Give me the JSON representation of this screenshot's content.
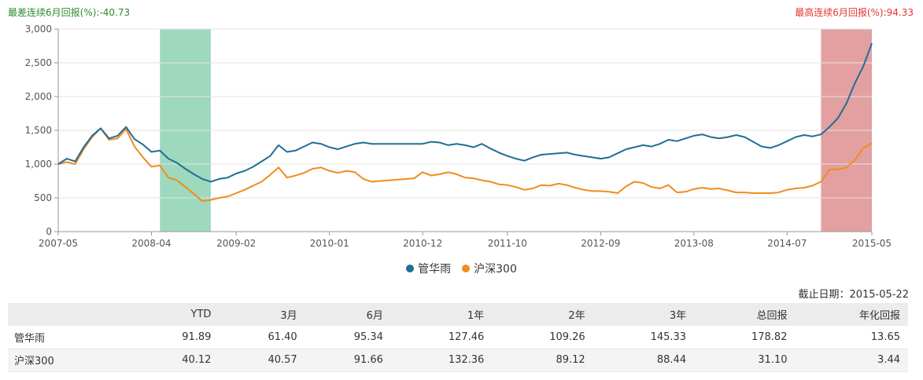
{
  "annotations": {
    "worst": "最差连续6月回报(%):-40.73",
    "best": "最高连续6月回报(%):94.33"
  },
  "colors": {
    "fund": "#1f6e96",
    "index": "#f28b1d",
    "worst_band": "#9ed9bd",
    "best_band": "#e3a0a0"
  },
  "chart_data": {
    "type": "line",
    "x_ticks": [
      "2007-05",
      "2008-04",
      "2009-02",
      "2010-01",
      "2010-12",
      "2011-10",
      "2012-09",
      "2013-08",
      "2014-07",
      "2015-05"
    ],
    "y_ticks": [
      "0",
      "500",
      "1,000",
      "1,500",
      "2,000",
      "2,500",
      "3,000"
    ],
    "ylim": [
      0,
      3000
    ],
    "highlight_bands": [
      {
        "start": "2008-05",
        "end": "2008-11",
        "label": "最差连续6月回报"
      },
      {
        "start": "2014-11",
        "end": "2015-05",
        "label": "最高连续6月回报"
      }
    ],
    "series": [
      {
        "name": "管华雨",
        "points": [
          [
            "2007-05",
            1000
          ],
          [
            "2007-06",
            1080
          ],
          [
            "2007-07",
            1040
          ],
          [
            "2007-08",
            1250
          ],
          [
            "2007-09",
            1420
          ],
          [
            "2007-10",
            1530
          ],
          [
            "2007-11",
            1380
          ],
          [
            "2007-12",
            1420
          ],
          [
            "2008-01",
            1550
          ],
          [
            "2008-02",
            1370
          ],
          [
            "2008-03",
            1290
          ],
          [
            "2008-04",
            1180
          ],
          [
            "2008-05",
            1200
          ],
          [
            "2008-06",
            1080
          ],
          [
            "2008-07",
            1020
          ],
          [
            "2008-08",
            930
          ],
          [
            "2008-09",
            850
          ],
          [
            "2008-10",
            780
          ],
          [
            "2008-11",
            740
          ],
          [
            "2008-12",
            780
          ],
          [
            "2009-01",
            800
          ],
          [
            "2009-02",
            860
          ],
          [
            "2009-03",
            900
          ],
          [
            "2009-04",
            960
          ],
          [
            "2009-05",
            1040
          ],
          [
            "2009-06",
            1120
          ],
          [
            "2009-07",
            1280
          ],
          [
            "2009-08",
            1180
          ],
          [
            "2009-09",
            1200
          ],
          [
            "2009-10",
            1260
          ],
          [
            "2009-11",
            1320
          ],
          [
            "2009-12",
            1300
          ],
          [
            "2010-01",
            1250
          ],
          [
            "2010-02",
            1220
          ],
          [
            "2010-03",
            1260
          ],
          [
            "2010-04",
            1300
          ],
          [
            "2010-05",
            1320
          ],
          [
            "2010-06",
            1300
          ],
          [
            "2010-12",
            1300
          ],
          [
            "2011-01",
            1330
          ],
          [
            "2011-02",
            1320
          ],
          [
            "2011-03",
            1280
          ],
          [
            "2011-04",
            1300
          ],
          [
            "2011-05",
            1280
          ],
          [
            "2011-06",
            1250
          ],
          [
            "2011-07",
            1300
          ],
          [
            "2011-08",
            1230
          ],
          [
            "2011-09",
            1170
          ],
          [
            "2011-10",
            1120
          ],
          [
            "2011-11",
            1080
          ],
          [
            "2011-12",
            1050
          ],
          [
            "2012-01",
            1100
          ],
          [
            "2012-02",
            1140
          ],
          [
            "2012-03",
            1150
          ],
          [
            "2012-04",
            1160
          ],
          [
            "2012-05",
            1170
          ],
          [
            "2012-06",
            1140
          ],
          [
            "2012-07",
            1120
          ],
          [
            "2012-08",
            1100
          ],
          [
            "2012-09",
            1080
          ],
          [
            "2012-10",
            1100
          ],
          [
            "2012-11",
            1160
          ],
          [
            "2012-12",
            1220
          ],
          [
            "2013-01",
            1250
          ],
          [
            "2013-02",
            1280
          ],
          [
            "2013-03",
            1260
          ],
          [
            "2013-04",
            1300
          ],
          [
            "2013-05",
            1360
          ],
          [
            "2013-06",
            1340
          ],
          [
            "2013-07",
            1380
          ],
          [
            "2013-08",
            1420
          ],
          [
            "2013-09",
            1440
          ],
          [
            "2013-10",
            1400
          ],
          [
            "2013-11",
            1380
          ],
          [
            "2013-12",
            1400
          ],
          [
            "2014-01",
            1430
          ],
          [
            "2014-02",
            1400
          ],
          [
            "2014-03",
            1330
          ],
          [
            "2014-04",
            1260
          ],
          [
            "2014-05",
            1240
          ],
          [
            "2014-06",
            1280
          ],
          [
            "2014-07",
            1340
          ],
          [
            "2014-08",
            1400
          ],
          [
            "2014-09",
            1430
          ],
          [
            "2014-10",
            1410
          ],
          [
            "2014-11",
            1440
          ],
          [
            "2014-12",
            1550
          ],
          [
            "2015-01",
            1680
          ],
          [
            "2015-02",
            1900
          ],
          [
            "2015-03",
            2200
          ],
          [
            "2015-04",
            2450
          ],
          [
            "2015-05",
            2790
          ]
        ]
      },
      {
        "name": "沪深300",
        "points": [
          [
            "2007-05",
            1000
          ],
          [
            "2007-06",
            1030
          ],
          [
            "2007-07",
            1000
          ],
          [
            "2007-08",
            1220
          ],
          [
            "2007-09",
            1400
          ],
          [
            "2007-10",
            1530
          ],
          [
            "2007-11",
            1360
          ],
          [
            "2007-12",
            1380
          ],
          [
            "2008-01",
            1520
          ],
          [
            "2008-02",
            1260
          ],
          [
            "2008-03",
            1100
          ],
          [
            "2008-04",
            960
          ],
          [
            "2008-05",
            980
          ],
          [
            "2008-06",
            800
          ],
          [
            "2008-07",
            760
          ],
          [
            "2008-08",
            660
          ],
          [
            "2008-09",
            560
          ],
          [
            "2008-10",
            450
          ],
          [
            "2008-11",
            470
          ],
          [
            "2008-12",
            500
          ],
          [
            "2009-01",
            520
          ],
          [
            "2009-02",
            570
          ],
          [
            "2009-03",
            620
          ],
          [
            "2009-04",
            680
          ],
          [
            "2009-05",
            740
          ],
          [
            "2009-06",
            840
          ],
          [
            "2009-07",
            950
          ],
          [
            "2009-08",
            800
          ],
          [
            "2009-09",
            830
          ],
          [
            "2009-10",
            870
          ],
          [
            "2009-11",
            930
          ],
          [
            "2009-12",
            950
          ],
          [
            "2010-01",
            900
          ],
          [
            "2010-02",
            870
          ],
          [
            "2010-03",
            900
          ],
          [
            "2010-04",
            880
          ],
          [
            "2010-05",
            780
          ],
          [
            "2010-06",
            740
          ],
          [
            "2010-11",
            790
          ],
          [
            "2010-12",
            880
          ],
          [
            "2011-01",
            830
          ],
          [
            "2011-02",
            850
          ],
          [
            "2011-03",
            880
          ],
          [
            "2011-04",
            850
          ],
          [
            "2011-05",
            800
          ],
          [
            "2011-06",
            790
          ],
          [
            "2011-07",
            760
          ],
          [
            "2011-08",
            740
          ],
          [
            "2011-09",
            700
          ],
          [
            "2011-10",
            690
          ],
          [
            "2011-11",
            660
          ],
          [
            "2011-12",
            620
          ],
          [
            "2012-01",
            640
          ],
          [
            "2012-02",
            690
          ],
          [
            "2012-03",
            680
          ],
          [
            "2012-04",
            710
          ],
          [
            "2012-05",
            690
          ],
          [
            "2012-06",
            650
          ],
          [
            "2012-07",
            620
          ],
          [
            "2012-08",
            600
          ],
          [
            "2012-09",
            600
          ],
          [
            "2012-10",
            590
          ],
          [
            "2012-11",
            570
          ],
          [
            "2012-12",
            670
          ],
          [
            "2013-01",
            740
          ],
          [
            "2013-02",
            720
          ],
          [
            "2013-03",
            660
          ],
          [
            "2013-04",
            640
          ],
          [
            "2013-05",
            690
          ],
          [
            "2013-06",
            580
          ],
          [
            "2013-07",
            590
          ],
          [
            "2013-08",
            630
          ],
          [
            "2013-09",
            650
          ],
          [
            "2013-10",
            630
          ],
          [
            "2013-11",
            640
          ],
          [
            "2013-12",
            610
          ],
          [
            "2014-01",
            580
          ],
          [
            "2014-02",
            580
          ],
          [
            "2014-03",
            570
          ],
          [
            "2014-04",
            570
          ],
          [
            "2014-05",
            570
          ],
          [
            "2014-06",
            580
          ],
          [
            "2014-07",
            620
          ],
          [
            "2014-08",
            640
          ],
          [
            "2014-09",
            650
          ],
          [
            "2014-10",
            680
          ],
          [
            "2014-11",
            740
          ],
          [
            "2014-12",
            920
          ],
          [
            "2015-01",
            920
          ],
          [
            "2015-02",
            950
          ],
          [
            "2015-03",
            1060
          ],
          [
            "2015-04",
            1240
          ],
          [
            "2015-05",
            1310
          ]
        ]
      }
    ]
  },
  "cutoff": "截止日期：2015-05-22",
  "table": {
    "headers": [
      "",
      "YTD",
      "3月",
      "6月",
      "1年",
      "2年",
      "3年",
      "总回报",
      "年化回报"
    ],
    "rows": [
      [
        "管华雨",
        "91.89",
        "61.40",
        "95.34",
        "127.46",
        "109.26",
        "145.33",
        "178.82",
        "13.65"
      ],
      [
        "沪深300",
        "40.12",
        "40.57",
        "91.66",
        "132.36",
        "89.12",
        "88.44",
        "31.10",
        "3.44"
      ]
    ]
  }
}
